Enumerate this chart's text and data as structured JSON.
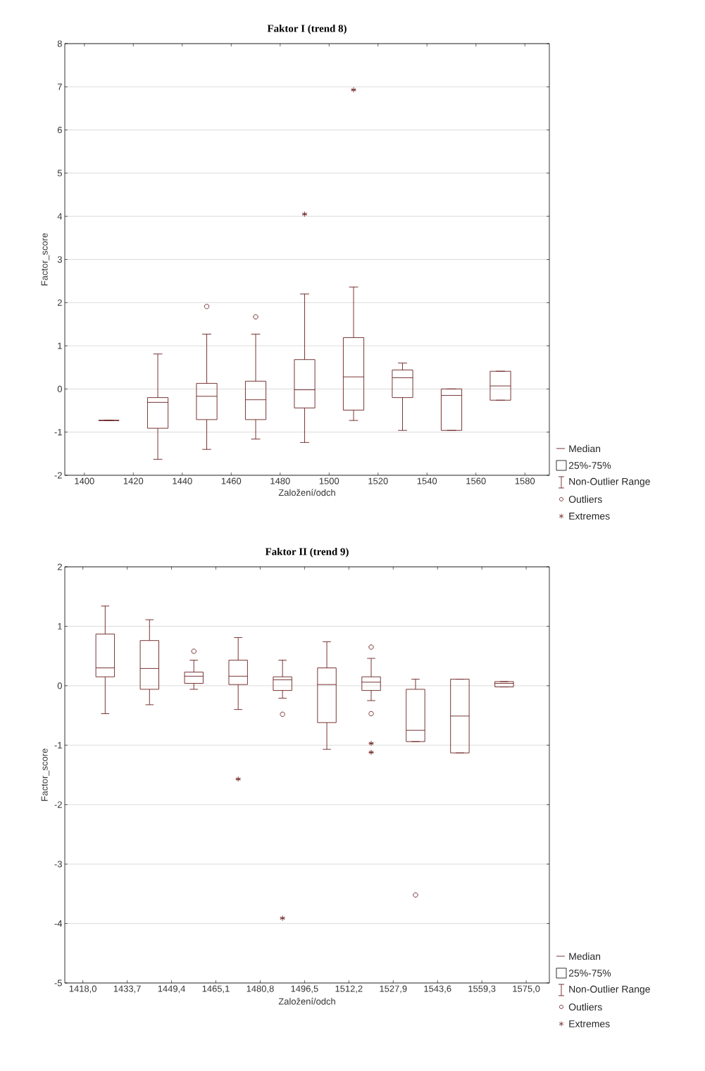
{
  "chart_data": [
    {
      "type": "box",
      "title": "**Faktor I (trend 8)**",
      "xlabel": "Založení/odch",
      "ylabel": "Factor_score",
      "x": [
        1410,
        1430,
        1450,
        1470,
        1490,
        1510,
        1530,
        1550,
        1570
      ],
      "xlim": [
        1392,
        1590
      ],
      "xticks": [
        1400,
        1420,
        1440,
        1460,
        1480,
        1500,
        1520,
        1540,
        1560,
        1580
      ],
      "ylim": [
        -2,
        8
      ],
      "yticks": [
        -2,
        -1,
        0,
        1,
        2,
        3,
        4,
        5,
        6,
        7,
        8
      ],
      "grid": "y",
      "legend": "bottom right",
      "annotations": [
        "Median",
        "25%-75%"
      ],
      "series": [
        {
          "type": "box",
          "name": "Non-Outlier Range",
          "color": "#6b1f1f",
          "boxes": [
            {
              "low": -0.73,
              "q1": -0.73,
              "median": -0.73,
              "q3": -0.73,
              "high": -0.73
            },
            {
              "low": -1.63,
              "q1": -0.91,
              "median": -0.31,
              "q3": -0.2,
              "high": 0.81
            },
            {
              "low": -1.4,
              "q1": -0.71,
              "median": -0.17,
              "q3": 0.13,
              "high": 1.27
            },
            {
              "low": -1.16,
              "q1": -0.71,
              "median": -0.25,
              "q3": 0.18,
              "high": 1.27
            },
            {
              "low": -1.24,
              "q1": -0.44,
              "median": -0.02,
              "q3": 0.68,
              "high": 2.2
            },
            {
              "low": -0.73,
              "q1": -0.49,
              "median": 0.28,
              "q3": 1.19,
              "high": 2.36
            },
            {
              "low": -0.96,
              "q1": -0.2,
              "median": 0.26,
              "q3": 0.44,
              "high": 0.6
            },
            {
              "low": -0.96,
              "q1": -0.96,
              "median": -0.15,
              "q3": 0.0,
              "high": 0.0
            },
            {
              "low": -0.26,
              "q1": -0.26,
              "median": 0.07,
              "q3": 0.41,
              "high": 0.41
            }
          ]
        },
        {
          "type": "scatter",
          "name": "Outliers",
          "color": "#6b1f1f",
          "marker": "circle",
          "x": [
            1450,
            1470
          ],
          "values": [
            1.91,
            1.67
          ]
        },
        {
          "type": "scatter",
          "name": "Extremes",
          "color": "#6b1f1f",
          "marker": "cross",
          "x": [
            1490,
            1510
          ],
          "values": [
            4.05,
            6.93
          ]
        }
      ]
    },
    {
      "type": "box",
      "title": "**Faktor II (trend 9)**",
      "xlabel": "Založení/odch",
      "ylabel": "Factor_score",
      "x": [
        1425.9,
        1441.6,
        1457.3,
        1473.0,
        1488.7,
        1504.4,
        1520.1,
        1535.8,
        1551.5,
        1567.2
      ],
      "xlim": [
        1411.6,
        1583.2
      ],
      "xticks": [
        {
          "value": 1418.0,
          "label": "1418,0"
        },
        {
          "value": 1433.7,
          "label": "1433,7"
        },
        {
          "value": 1449.4,
          "label": "1449,4"
        },
        {
          "value": 1465.1,
          "label": "1465,1"
        },
        {
          "value": 1480.8,
          "label": "1480,8"
        },
        {
          "value": 1496.5,
          "label": "1496,5"
        },
        {
          "value": 1512.2,
          "label": "1512,2"
        },
        {
          "value": 1527.9,
          "label": "1527,9"
        },
        {
          "value": 1543.6,
          "label": "1543,6"
        },
        {
          "value": 1559.3,
          "label": "1559,3"
        },
        {
          "value": 1575.0,
          "label": "1575,0"
        }
      ],
      "ylim": [
        -5,
        2
      ],
      "yticks": [
        -5,
        -4,
        -3,
        -2,
        -1,
        0,
        1,
        2
      ],
      "grid": "y",
      "legend": "bottom right",
      "annotations": [
        "Median",
        "25%-75%"
      ],
      "series": [
        {
          "type": "box",
          "name": "Non-Outlier Range",
          "color": "#6b1f1f",
          "boxes": [
            {
              "low": -0.47,
              "q1": 0.15,
              "median": 0.3,
              "q3": 0.87,
              "high": 1.34
            },
            {
              "low": -0.32,
              "q1": -0.06,
              "median": 0.29,
              "q3": 0.76,
              "high": 1.11
            },
            {
              "low": -0.06,
              "q1": 0.04,
              "median": 0.16,
              "q3": 0.23,
              "high": 0.43
            },
            {
              "low": -0.4,
              "q1": 0.02,
              "median": 0.16,
              "q3": 0.43,
              "high": 0.81
            },
            {
              "low": -0.21,
              "q1": -0.08,
              "median": 0.1,
              "q3": 0.15,
              "high": 0.43
            },
            {
              "low": -1.07,
              "q1": -0.62,
              "median": 0.02,
              "q3": 0.3,
              "high": 0.74
            },
            {
              "low": -0.25,
              "q1": -0.08,
              "median": 0.06,
              "q3": 0.15,
              "high": 0.46
            },
            {
              "low": -0.94,
              "q1": -0.94,
              "median": -0.75,
              "q3": -0.06,
              "high": 0.11
            },
            {
              "low": -1.13,
              "q1": -1.13,
              "median": -0.51,
              "q3": 0.11,
              "high": 0.11
            },
            {
              "low": -0.02,
              "q1": -0.02,
              "median": 0.04,
              "q3": 0.07,
              "high": 0.07
            }
          ]
        },
        {
          "type": "scatter",
          "name": "Outliers",
          "color": "#6b1f1f",
          "marker": "circle",
          "x": [
            1457.3,
            1488.7,
            1520.1,
            1520.1,
            1535.8
          ],
          "values": [
            0.58,
            -0.48,
            0.65,
            -0.47,
            -3.52
          ]
        },
        {
          "type": "scatter",
          "name": "Extremes",
          "color": "#6b1f1f",
          "marker": "cross",
          "x": [
            1473.0,
            1488.7,
            1520.1,
            1520.1
          ],
          "values": [
            -1.57,
            -3.91,
            -0.97,
            -1.12
          ]
        }
      ]
    }
  ]
}
